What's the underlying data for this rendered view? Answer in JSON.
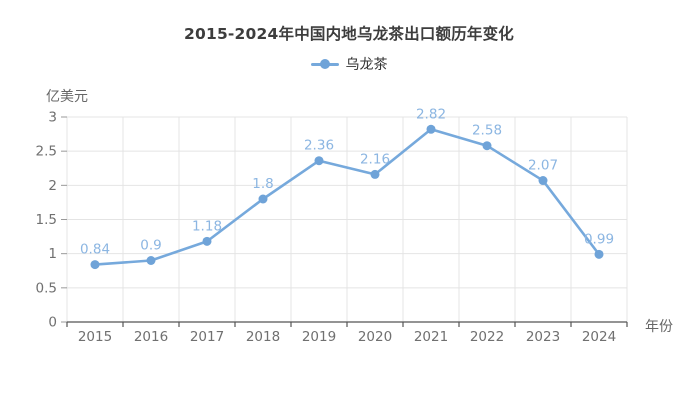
{
  "page": {
    "background": "#ffffff"
  },
  "chart_data": {
    "type": "line",
    "title": "2015-2024年中国内地乌龙茶出口额历年变化",
    "categories": [
      "2015",
      "2016",
      "2017",
      "2018",
      "2019",
      "2020",
      "2021",
      "2022",
      "2023",
      "2024"
    ],
    "series": [
      {
        "name": "乌龙茶",
        "values": [
          0.84,
          0.9,
          1.18,
          1.8,
          2.36,
          2.16,
          2.82,
          2.58,
          2.07,
          0.99
        ]
      }
    ],
    "ylabel": "亿美元",
    "xlabel": "年份",
    "ylim": [
      0,
      3
    ],
    "ytick_step": 0.5,
    "grid": true,
    "legend_position": "top",
    "data_labels_visible": true,
    "colors": {
      "line": "#76A9DC",
      "point": "#6FA3D8",
      "data_label": "#8CB6E2",
      "grid_line": "#E4E4E4",
      "axis_line": "#555555",
      "y_tick_mark": "#999999",
      "tick_label": "#707070",
      "title": "#3d3d3d",
      "legend_text": "#333333",
      "axis_name_text": "#666666"
    }
  }
}
